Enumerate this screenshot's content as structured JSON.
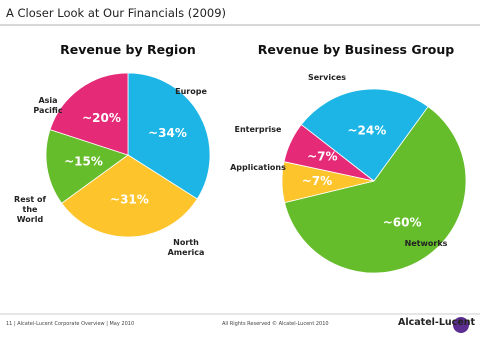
{
  "header": {
    "title": "A Closer Look at Our Financials (2009)"
  },
  "footer": {
    "left": "11 | Alcatel-Lucent Corporate Overview | May 2010",
    "center": "All Rights Reserved © Alcatel-Lucent 2010",
    "logo": "Alcatel-Lucent"
  },
  "chart_data": [
    {
      "type": "pie",
      "title": "Revenue by Region",
      "categories": [
        "Europe",
        "North America",
        "Rest of the World",
        "Asia Pacific"
      ],
      "values": [
        34,
        31,
        15,
        20
      ],
      "value_labels": [
        "~34%",
        "~31%",
        "~15%",
        "~20%"
      ],
      "colors": [
        "#1cb5e6",
        "#fec42c",
        "#66bd2b",
        "#e52a78"
      ]
    },
    {
      "type": "pie",
      "title": "Revenue by Business Group",
      "categories": [
        "Networks",
        "Applications",
        "Enterprise",
        "Services"
      ],
      "values": [
        60,
        7,
        7,
        24
      ],
      "value_labels": [
        "~60%",
        "~7%",
        "~7%",
        "~24%"
      ],
      "colors": [
        "#66bd2b",
        "#fec42c",
        "#e52a78",
        "#1cb5e6"
      ]
    }
  ]
}
